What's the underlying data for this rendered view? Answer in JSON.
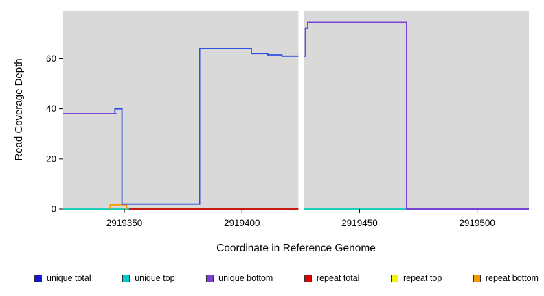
{
  "chart_data": {
    "type": "line",
    "title": "",
    "xlabel": "Coordinate in Reference Genome",
    "ylabel": "Read Coverage Depth",
    "xlim": [
      2919324,
      2919522
    ],
    "ylim": [
      0,
      79
    ],
    "xticks": [
      2919350,
      2919400,
      2919450,
      2919500
    ],
    "yticks": [
      0,
      20,
      40,
      60
    ],
    "panel_color": "#d9d9d9",
    "grid": false,
    "legend_position": "bottom",
    "mask_regions": [
      [
        2919424,
        2919426.3
      ]
    ],
    "series": [
      {
        "name": "repeat top",
        "color": "#f2f20a",
        "paths": [
          [
            [
              2919324,
              0
            ],
            [
              2919522,
              0
            ]
          ]
        ]
      },
      {
        "name": "unique top",
        "color": "#00cccc",
        "paths": [
          [
            [
              2919324,
              0
            ],
            [
              2919522,
              0
            ]
          ]
        ]
      },
      {
        "name": "repeat total",
        "color": "#dd0000",
        "paths": [
          [
            [
              2919352,
              0
            ],
            [
              2919424,
              0
            ]
          ]
        ]
      },
      {
        "name": "repeat bottom",
        "color": "#f59b00",
        "paths": [
          [
            [
              2919344,
              0
            ],
            [
              2919344,
              1.7
            ],
            [
              2919351,
              1.7
            ],
            [
              2919351,
              0
            ]
          ]
        ]
      },
      {
        "name": "unique total",
        "color": "#3050e0",
        "paths": [
          [
            [
              2919324,
              38
            ],
            [
              2919346,
              38
            ],
            [
              2919346,
              40
            ],
            [
              2919349,
              40
            ],
            [
              2919349,
              2
            ],
            [
              2919382,
              2
            ],
            [
              2919382,
              64
            ],
            [
              2919404,
              64
            ],
            [
              2919404,
              62
            ],
            [
              2919411,
              62
            ],
            [
              2919411,
              61.5
            ],
            [
              2919417,
              61.5
            ],
            [
              2919417,
              61
            ],
            [
              2919427,
              61
            ],
            [
              2919427,
              72
            ],
            [
              2919428,
              72
            ],
            [
              2919428,
              74.5
            ],
            [
              2919470,
              74.5
            ],
            [
              2919470,
              0
            ],
            [
              2919522,
              0
            ]
          ]
        ]
      },
      {
        "name": "unique bottom",
        "color": "#7d3fd4",
        "paths": [
          [
            [
              2919324,
              38
            ],
            [
              2919347,
              38
            ]
          ],
          [
            [
              2919427,
              61
            ],
            [
              2919427,
              72
            ],
            [
              2919428,
              72
            ],
            [
              2919428,
              74.5
            ],
            [
              2919470,
              74.5
            ],
            [
              2919470,
              0
            ],
            [
              2919522,
              0
            ]
          ]
        ]
      }
    ],
    "legend": [
      {
        "label": "unique total",
        "color": "#1515cc"
      },
      {
        "label": "unique top",
        "color": "#00cccc"
      },
      {
        "label": "unique bottom",
        "color": "#7d3fd4"
      },
      {
        "label": "repeat total",
        "color": "#dd0000"
      },
      {
        "label": "repeat top",
        "color": "#f2f20a"
      },
      {
        "label": "repeat bottom",
        "color": "#f59b00"
      }
    ]
  }
}
